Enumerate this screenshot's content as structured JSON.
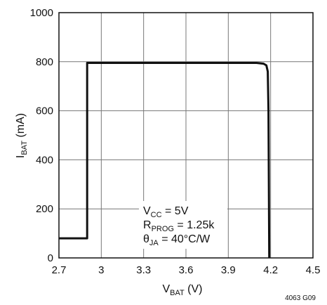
{
  "chart_data": {
    "type": "line",
    "xlabel": {
      "main": "V",
      "sub": "BAT",
      "unit": " (V)"
    },
    "ylabel": {
      "main": "I",
      "sub": "BAT",
      "unit": " (mA)"
    },
    "xlim": [
      2.7,
      4.5
    ],
    "ylim": [
      0,
      1000
    ],
    "x_ticks": [
      2.7,
      3,
      3.3,
      3.6,
      3.9,
      4.2,
      4.5
    ],
    "x_tick_labels": [
      "2.7",
      "3",
      "3.3",
      "3.6",
      "3.9",
      "4.2",
      "4.5"
    ],
    "y_ticks": [
      0,
      200,
      400,
      600,
      800,
      1000
    ],
    "y_tick_labels": [
      "0",
      "200",
      "400",
      "600",
      "800",
      "1000"
    ],
    "grid": true,
    "series": [
      {
        "x": [
          2.7,
          2.9,
          2.9,
          4.1,
          4.15,
          4.17,
          4.18,
          4.185,
          4.19
        ],
        "y": [
          80,
          80,
          795,
          795,
          792,
          785,
          760,
          600,
          0
        ]
      }
    ],
    "conditions": [
      {
        "pre": "V",
        "sub": "CC",
        "post": " = 5V"
      },
      {
        "pre": "R",
        "sub": "PROG",
        "post": " = 1.25k"
      },
      {
        "pre": "θ",
        "sub": "JA",
        "post": " = 40°C/W"
      }
    ],
    "figure_id": "4063 G09"
  }
}
